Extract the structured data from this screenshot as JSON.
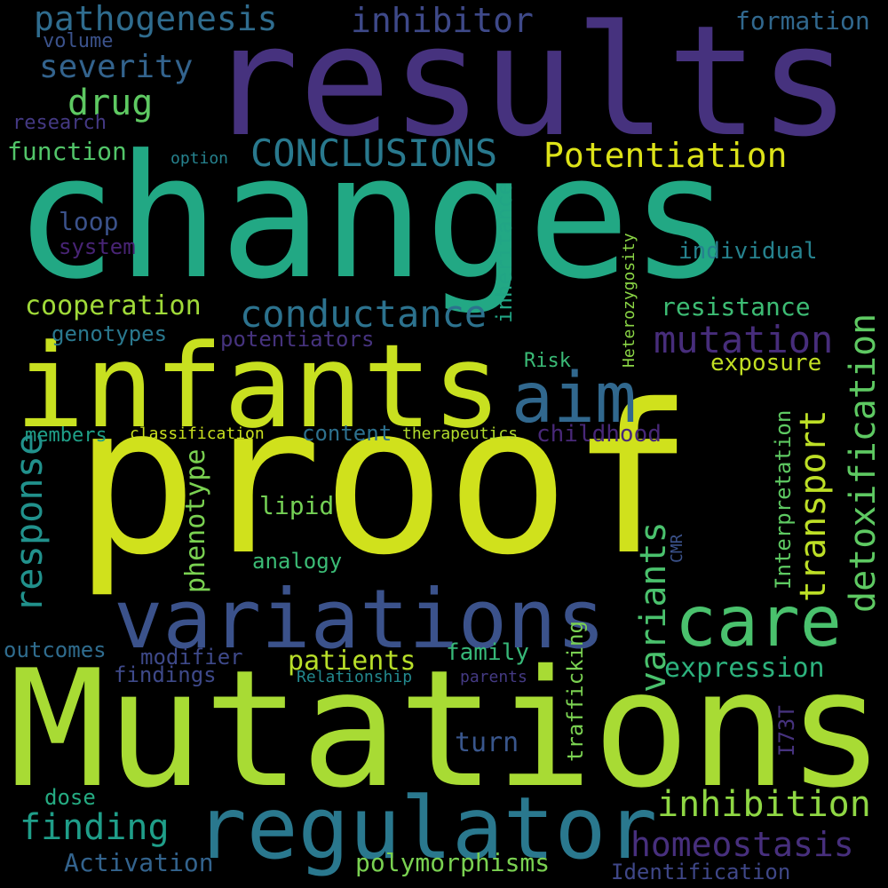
{
  "words": [
    {
      "text": "proof",
      "color": "#d0e11c",
      "rotated": false
    },
    {
      "text": "Mutations",
      "color": "#a8db34",
      "rotated": false
    },
    {
      "text": "changes",
      "color": "#22a884",
      "rotated": false
    },
    {
      "text": "results",
      "color": "#46327e",
      "rotated": false
    },
    {
      "text": "infants",
      "color": "#c8e020",
      "rotated": false
    },
    {
      "text": "regulator",
      "color": "#2a788e",
      "rotated": false
    },
    {
      "text": "variations",
      "color": "#3b528b",
      "rotated": false
    },
    {
      "text": "care",
      "color": "#4ac16d",
      "rotated": false
    },
    {
      "text": "aim",
      "color": "#31688e",
      "rotated": false
    },
    {
      "text": "conductance",
      "color": "#2c728e",
      "rotated": false
    },
    {
      "text": "mutation",
      "color": "#472d7b",
      "rotated": false
    },
    {
      "text": "CONCLUSIONS",
      "color": "#29798e",
      "rotated": false
    },
    {
      "text": "Potentiation",
      "color": "#dde318",
      "rotated": false
    },
    {
      "text": "pathogenesis",
      "color": "#2f6c8e",
      "rotated": false
    },
    {
      "text": "inhibitor",
      "color": "#3e4989",
      "rotated": false
    },
    {
      "text": "severity",
      "color": "#33638d",
      "rotated": false
    },
    {
      "text": "drug",
      "color": "#5ec962",
      "rotated": false
    },
    {
      "text": "formation",
      "color": "#31688e",
      "rotated": false
    },
    {
      "text": "volume",
      "color": "#3b528b",
      "rotated": false
    },
    {
      "text": "research",
      "color": "#443983",
      "rotated": false
    },
    {
      "text": "function",
      "color": "#52c569",
      "rotated": false
    },
    {
      "text": "option",
      "color": "#26828e",
      "rotated": false
    },
    {
      "text": "loop",
      "color": "#3b528b",
      "rotated": false
    },
    {
      "text": "system",
      "color": "#482475",
      "rotated": false
    },
    {
      "text": "cooperation",
      "color": "#a0da39",
      "rotated": false
    },
    {
      "text": "genotypes",
      "color": "#2a788e",
      "rotated": false
    },
    {
      "text": "potentiators",
      "color": "#46337e",
      "rotated": false
    },
    {
      "text": "individual",
      "color": "#26828e",
      "rotated": false
    },
    {
      "text": "resistance",
      "color": "#3dbc74",
      "rotated": false
    },
    {
      "text": "exposure",
      "color": "#c2df23",
      "rotated": false
    },
    {
      "text": "Risk",
      "color": "#3aba76",
      "rotated": false
    },
    {
      "text": "members",
      "color": "#1fa088",
      "rotated": false
    },
    {
      "text": "classification",
      "color": "#cae11f",
      "rotated": false
    },
    {
      "text": "content",
      "color": "#2d708e",
      "rotated": false
    },
    {
      "text": "therapeutics",
      "color": "#b2dd2d",
      "rotated": false
    },
    {
      "text": "childhood",
      "color": "#482878",
      "rotated": false
    },
    {
      "text": "lipid",
      "color": "#74d055",
      "rotated": false
    },
    {
      "text": "analogy",
      "color": "#3bbb75",
      "rotated": false
    },
    {
      "text": "outcomes",
      "color": "#2f6c8e",
      "rotated": false
    },
    {
      "text": "modifier",
      "color": "#3e4989",
      "rotated": false
    },
    {
      "text": "findings",
      "color": "#3e4989",
      "rotated": false
    },
    {
      "text": "patients",
      "color": "#b8de29",
      "rotated": false
    },
    {
      "text": "family",
      "color": "#37b878",
      "rotated": false
    },
    {
      "text": "Relationship",
      "color": "#23898e",
      "rotated": false
    },
    {
      "text": "parents",
      "color": "#443a83",
      "rotated": false
    },
    {
      "text": "expression",
      "color": "#2db27d",
      "rotated": false
    },
    {
      "text": "turn",
      "color": "#39568c",
      "rotated": false
    },
    {
      "text": "dose",
      "color": "#25ab82",
      "rotated": false
    },
    {
      "text": "finding",
      "color": "#1f9e89",
      "rotated": false
    },
    {
      "text": "inhibition",
      "color": "#8fd744",
      "rotated": false
    },
    {
      "text": "homeostasis",
      "color": "#472f7d",
      "rotated": false
    },
    {
      "text": "Activation",
      "color": "#33638d",
      "rotated": false
    },
    {
      "text": "polymorphisms",
      "color": "#7ad151",
      "rotated": false
    },
    {
      "text": "Identification",
      "color": "#3f4788",
      "rotated": false
    },
    {
      "text": "response",
      "color": "#21918c",
      "rotated": true
    },
    {
      "text": "phenotype",
      "color": "#7ad151",
      "rotated": true
    },
    {
      "text": "variants",
      "color": "#4ac16d",
      "rotated": true
    },
    {
      "text": "transport",
      "color": "#bddf26",
      "rotated": true
    },
    {
      "text": "detoxification",
      "color": "#5ec962",
      "rotated": true
    },
    {
      "text": "inheritance",
      "color": "#21a585",
      "rotated": true
    },
    {
      "text": "Heterozygosity",
      "color": "#8bd646",
      "rotated": true
    },
    {
      "text": "Interpretation",
      "color": "#5ec962",
      "rotated": true
    },
    {
      "text": "CMR",
      "color": "#3b528b",
      "rotated": true
    },
    {
      "text": "trafficking",
      "color": "#7ad151",
      "rotated": true
    },
    {
      "text": "I73T",
      "color": "#46327e",
      "rotated": true
    }
  ]
}
